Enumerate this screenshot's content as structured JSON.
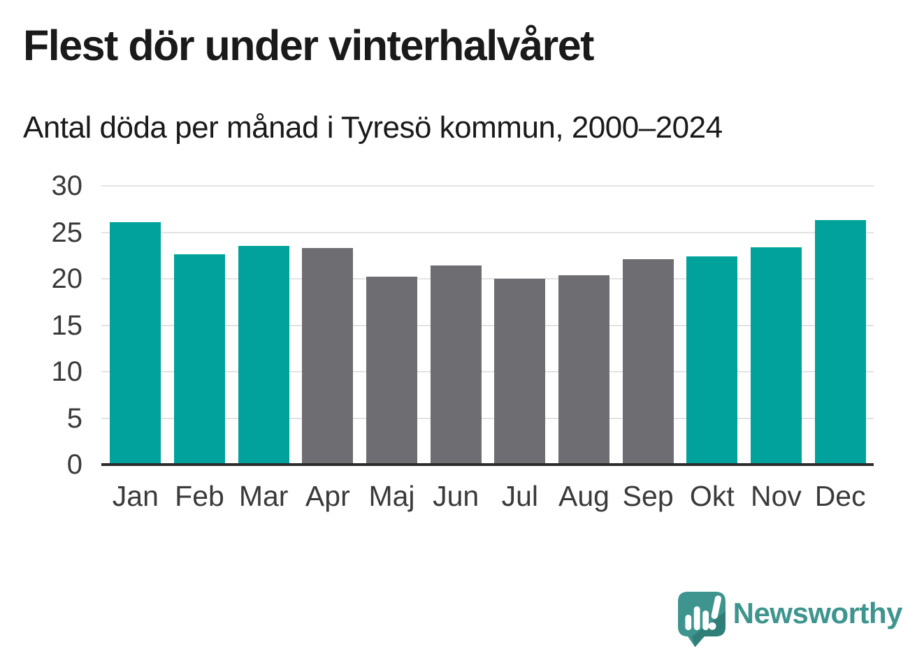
{
  "header": {
    "title": "Flest dör under vinterhalvåret",
    "subtitle": "Antal döda per månad i Tyresö kommun, 2000–2024"
  },
  "chart_data": {
    "type": "bar",
    "title": "Flest dör under vinterhalvåret",
    "subtitle": "Antal döda per månad i Tyresö kommun, 2000–2024",
    "categories": [
      "Jan",
      "Feb",
      "Mar",
      "Apr",
      "Maj",
      "Jun",
      "Jul",
      "Aug",
      "Sep",
      "Okt",
      "Nov",
      "Dec"
    ],
    "values": [
      26.1,
      22.6,
      23.5,
      23.3,
      20.2,
      21.4,
      20.0,
      20.4,
      22.1,
      22.4,
      23.4,
      26.3
    ],
    "bar_colors": [
      "teal",
      "teal",
      "teal",
      "gray",
      "gray",
      "gray",
      "gray",
      "gray",
      "gray",
      "teal",
      "teal",
      "teal"
    ],
    "palette": {
      "teal": "#00A29B",
      "gray": "#6E6D72"
    },
    "xlabel": "",
    "ylabel": "",
    "ylim": [
      0,
      30
    ],
    "yticks": [
      0,
      5,
      10,
      15,
      20,
      25,
      30
    ],
    "grid": "horizontal-only",
    "legend": "none",
    "gridline_color": "#e3e3e3",
    "axis_line_color": "#2b2b2b",
    "tick_label_color": "#3a3a3a"
  },
  "footer": {
    "brand": "Newsworthy",
    "brand_color": "#3E948E",
    "logo_icon": "newsworthy-speech-bubble-bar-chart-icon",
    "logo_dark_shade": "#2F7E78"
  }
}
